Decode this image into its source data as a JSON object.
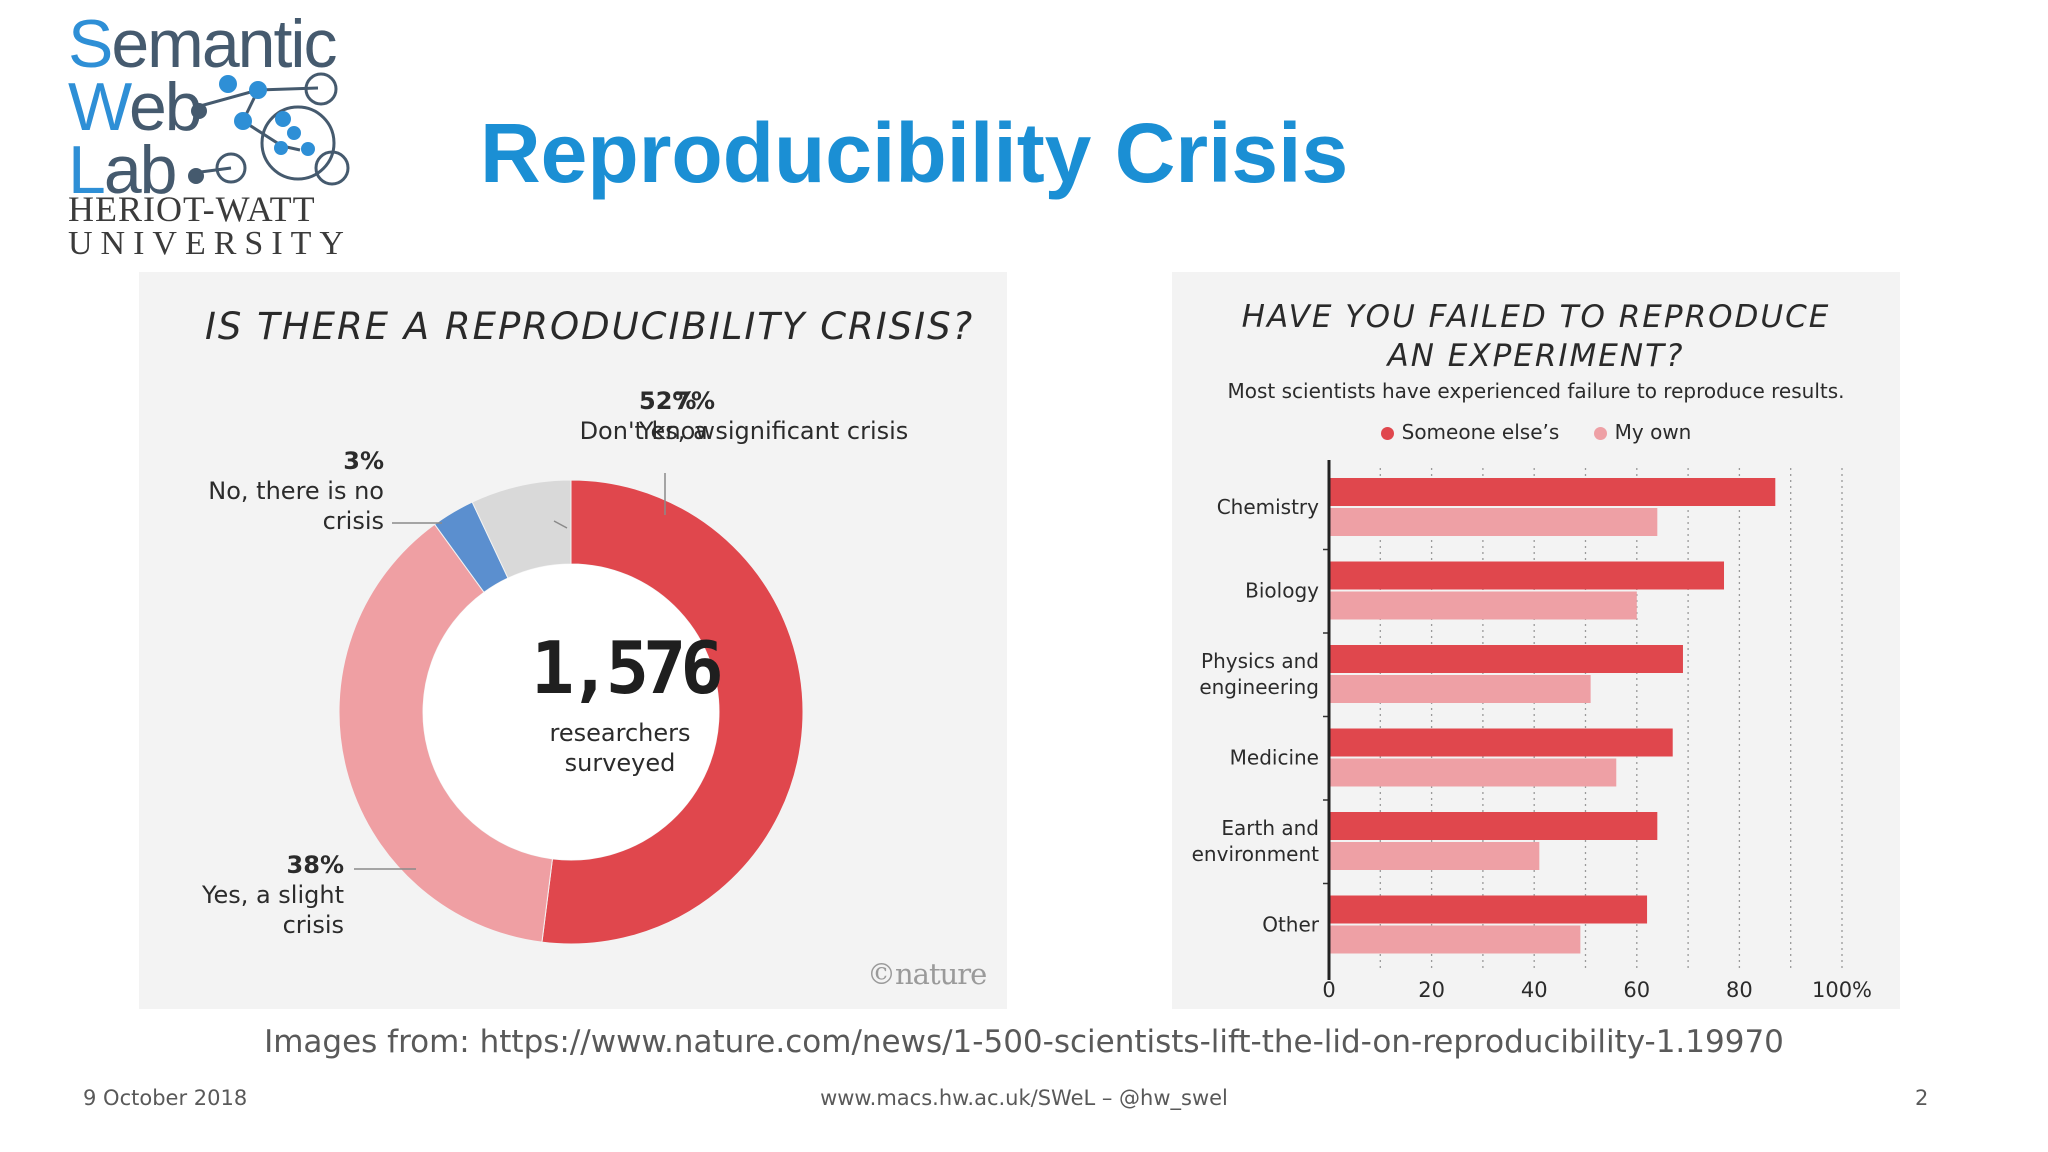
{
  "logo": {
    "line1_cap": "S",
    "line1_rest": "emantic",
    "line2_cap": "W",
    "line2_rest": "eb",
    "line3_cap": "L",
    "line3_rest": "ab",
    "uni1": "HERIOT-WATT",
    "uni2": "UNIVERSITY"
  },
  "title": "Reproducibility Crisis",
  "colors": {
    "title": "#1b8fd4",
    "dark_red": "#e0474d",
    "light_red": "#eea0a5",
    "pie_light": "#ef9fa3",
    "blue": "#5b8fcf",
    "grey": "#d9d9d9"
  },
  "left_chart": {
    "credit": "©nature",
    "center_number": "1,576",
    "center_line1": "researchers",
    "center_line2": "surveyed"
  },
  "right_chart": {
    "subtitle": "Most scientists have experienced failure to reproduce results."
  },
  "chart_data": [
    {
      "type": "pie",
      "variant": "donut",
      "title": "IS THERE A REPRODUCIBILITY CRISIS?",
      "total_label": "1,576 researchers surveyed",
      "slices": [
        {
          "label": "Yes, a significant crisis",
          "percent_label": "52%",
          "value": 52,
          "color": "#e0474d"
        },
        {
          "label": "Yes, a slight crisis",
          "percent_label": "38%",
          "value": 38,
          "color": "#ef9fa3"
        },
        {
          "label": "No, there is no crisis",
          "percent_label": "3%",
          "value": 3,
          "color": "#5b8fcf"
        },
        {
          "label": "Don't know",
          "percent_label": "7%",
          "value": 7,
          "color": "#d9d9d9"
        }
      ]
    },
    {
      "type": "bar",
      "orientation": "horizontal",
      "title": "HAVE YOU FAILED TO REPRODUCE AN EXPERIMENT?",
      "title_lines": [
        "HAVE YOU FAILED TO REPRODUCE",
        "AN EXPERIMENT?"
      ],
      "categories": [
        [
          "Chemistry"
        ],
        [
          "Biology"
        ],
        [
          "Physics and",
          "engineering"
        ],
        [
          "Medicine"
        ],
        [
          "Earth and",
          "environment"
        ],
        [
          "Other"
        ]
      ],
      "series": [
        {
          "name": "Someone else’s",
          "color": "#e0474d",
          "values": [
            87,
            77,
            69,
            67,
            64,
            62
          ]
        },
        {
          "name": "My own",
          "color": "#eea0a5",
          "values": [
            64,
            60,
            51,
            56,
            41,
            49
          ]
        }
      ],
      "xlim": [
        0,
        100
      ],
      "xticks": [
        "0",
        "20",
        "40",
        "60",
        "80",
        "100%"
      ],
      "xtick_values": [
        0,
        20,
        40,
        60,
        80,
        100
      ],
      "legend": "top"
    }
  ],
  "source": "Images from: https://www.nature.com/news/1-500-scientists-lift-the-lid-on-reproducibility-1.19970",
  "footer": {
    "date": "9 October 2018",
    "url": "www.macs.hw.ac.uk/SWeL – @hw_swel",
    "page": "2"
  }
}
